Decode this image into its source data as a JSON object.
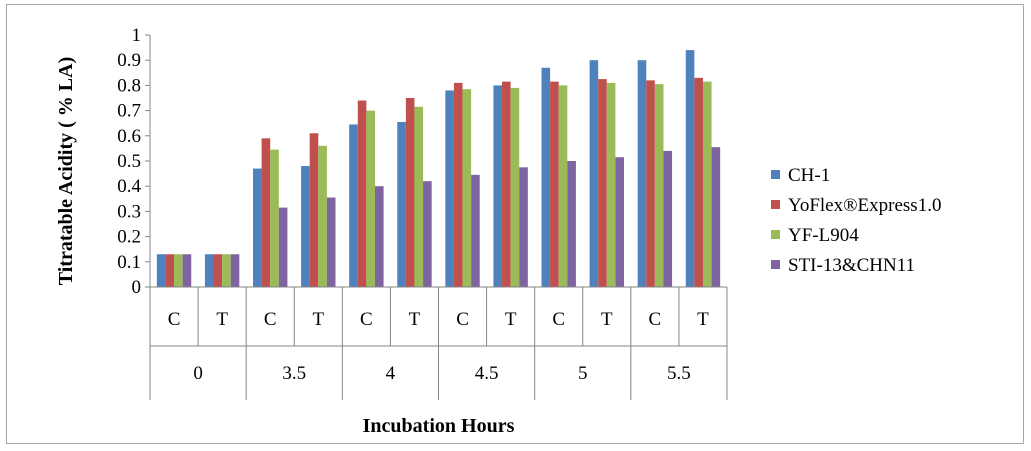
{
  "chart_data": {
    "type": "bar",
    "ylabel": "Titratable Acidity ( % LA)",
    "xlabel": "Incubation Hours",
    "ylim": [
      0,
      1
    ],
    "yticks": [
      "0",
      "0.1",
      "0.2",
      "0.3",
      "0.4",
      "0.5",
      "0.6",
      "0.7",
      "0.8",
      "0.9",
      "1"
    ],
    "categories": [
      "C",
      "T",
      "C",
      "T",
      "C",
      "T",
      "C",
      "T",
      "C",
      "T",
      "C",
      "T"
    ],
    "groups": [
      "0",
      "3.5",
      "4",
      "4.5",
      "5",
      "5.5"
    ],
    "series": [
      {
        "name": "CH-1",
        "color": "#4f81bd",
        "values": [
          0.13,
          0.13,
          0.47,
          0.48,
          0.645,
          0.655,
          0.78,
          0.8,
          0.87,
          0.9,
          0.9,
          0.94
        ]
      },
      {
        "name": "YoFlex®Express1.0",
        "color": "#c0504d",
        "values": [
          0.13,
          0.13,
          0.59,
          0.61,
          0.74,
          0.75,
          0.81,
          0.815,
          0.815,
          0.825,
          0.82,
          0.83
        ]
      },
      {
        "name": "YF-L904",
        "color": "#9bbb59",
        "values": [
          0.13,
          0.13,
          0.545,
          0.56,
          0.7,
          0.715,
          0.785,
          0.79,
          0.8,
          0.81,
          0.805,
          0.815
        ]
      },
      {
        "name": "STI-13&CHN11",
        "color": "#8064a2",
        "values": [
          0.13,
          0.13,
          0.315,
          0.355,
          0.4,
          0.42,
          0.445,
          0.475,
          0.5,
          0.515,
          0.54,
          0.555
        ]
      }
    ],
    "gridlines": false,
    "legend_position": "right"
  }
}
